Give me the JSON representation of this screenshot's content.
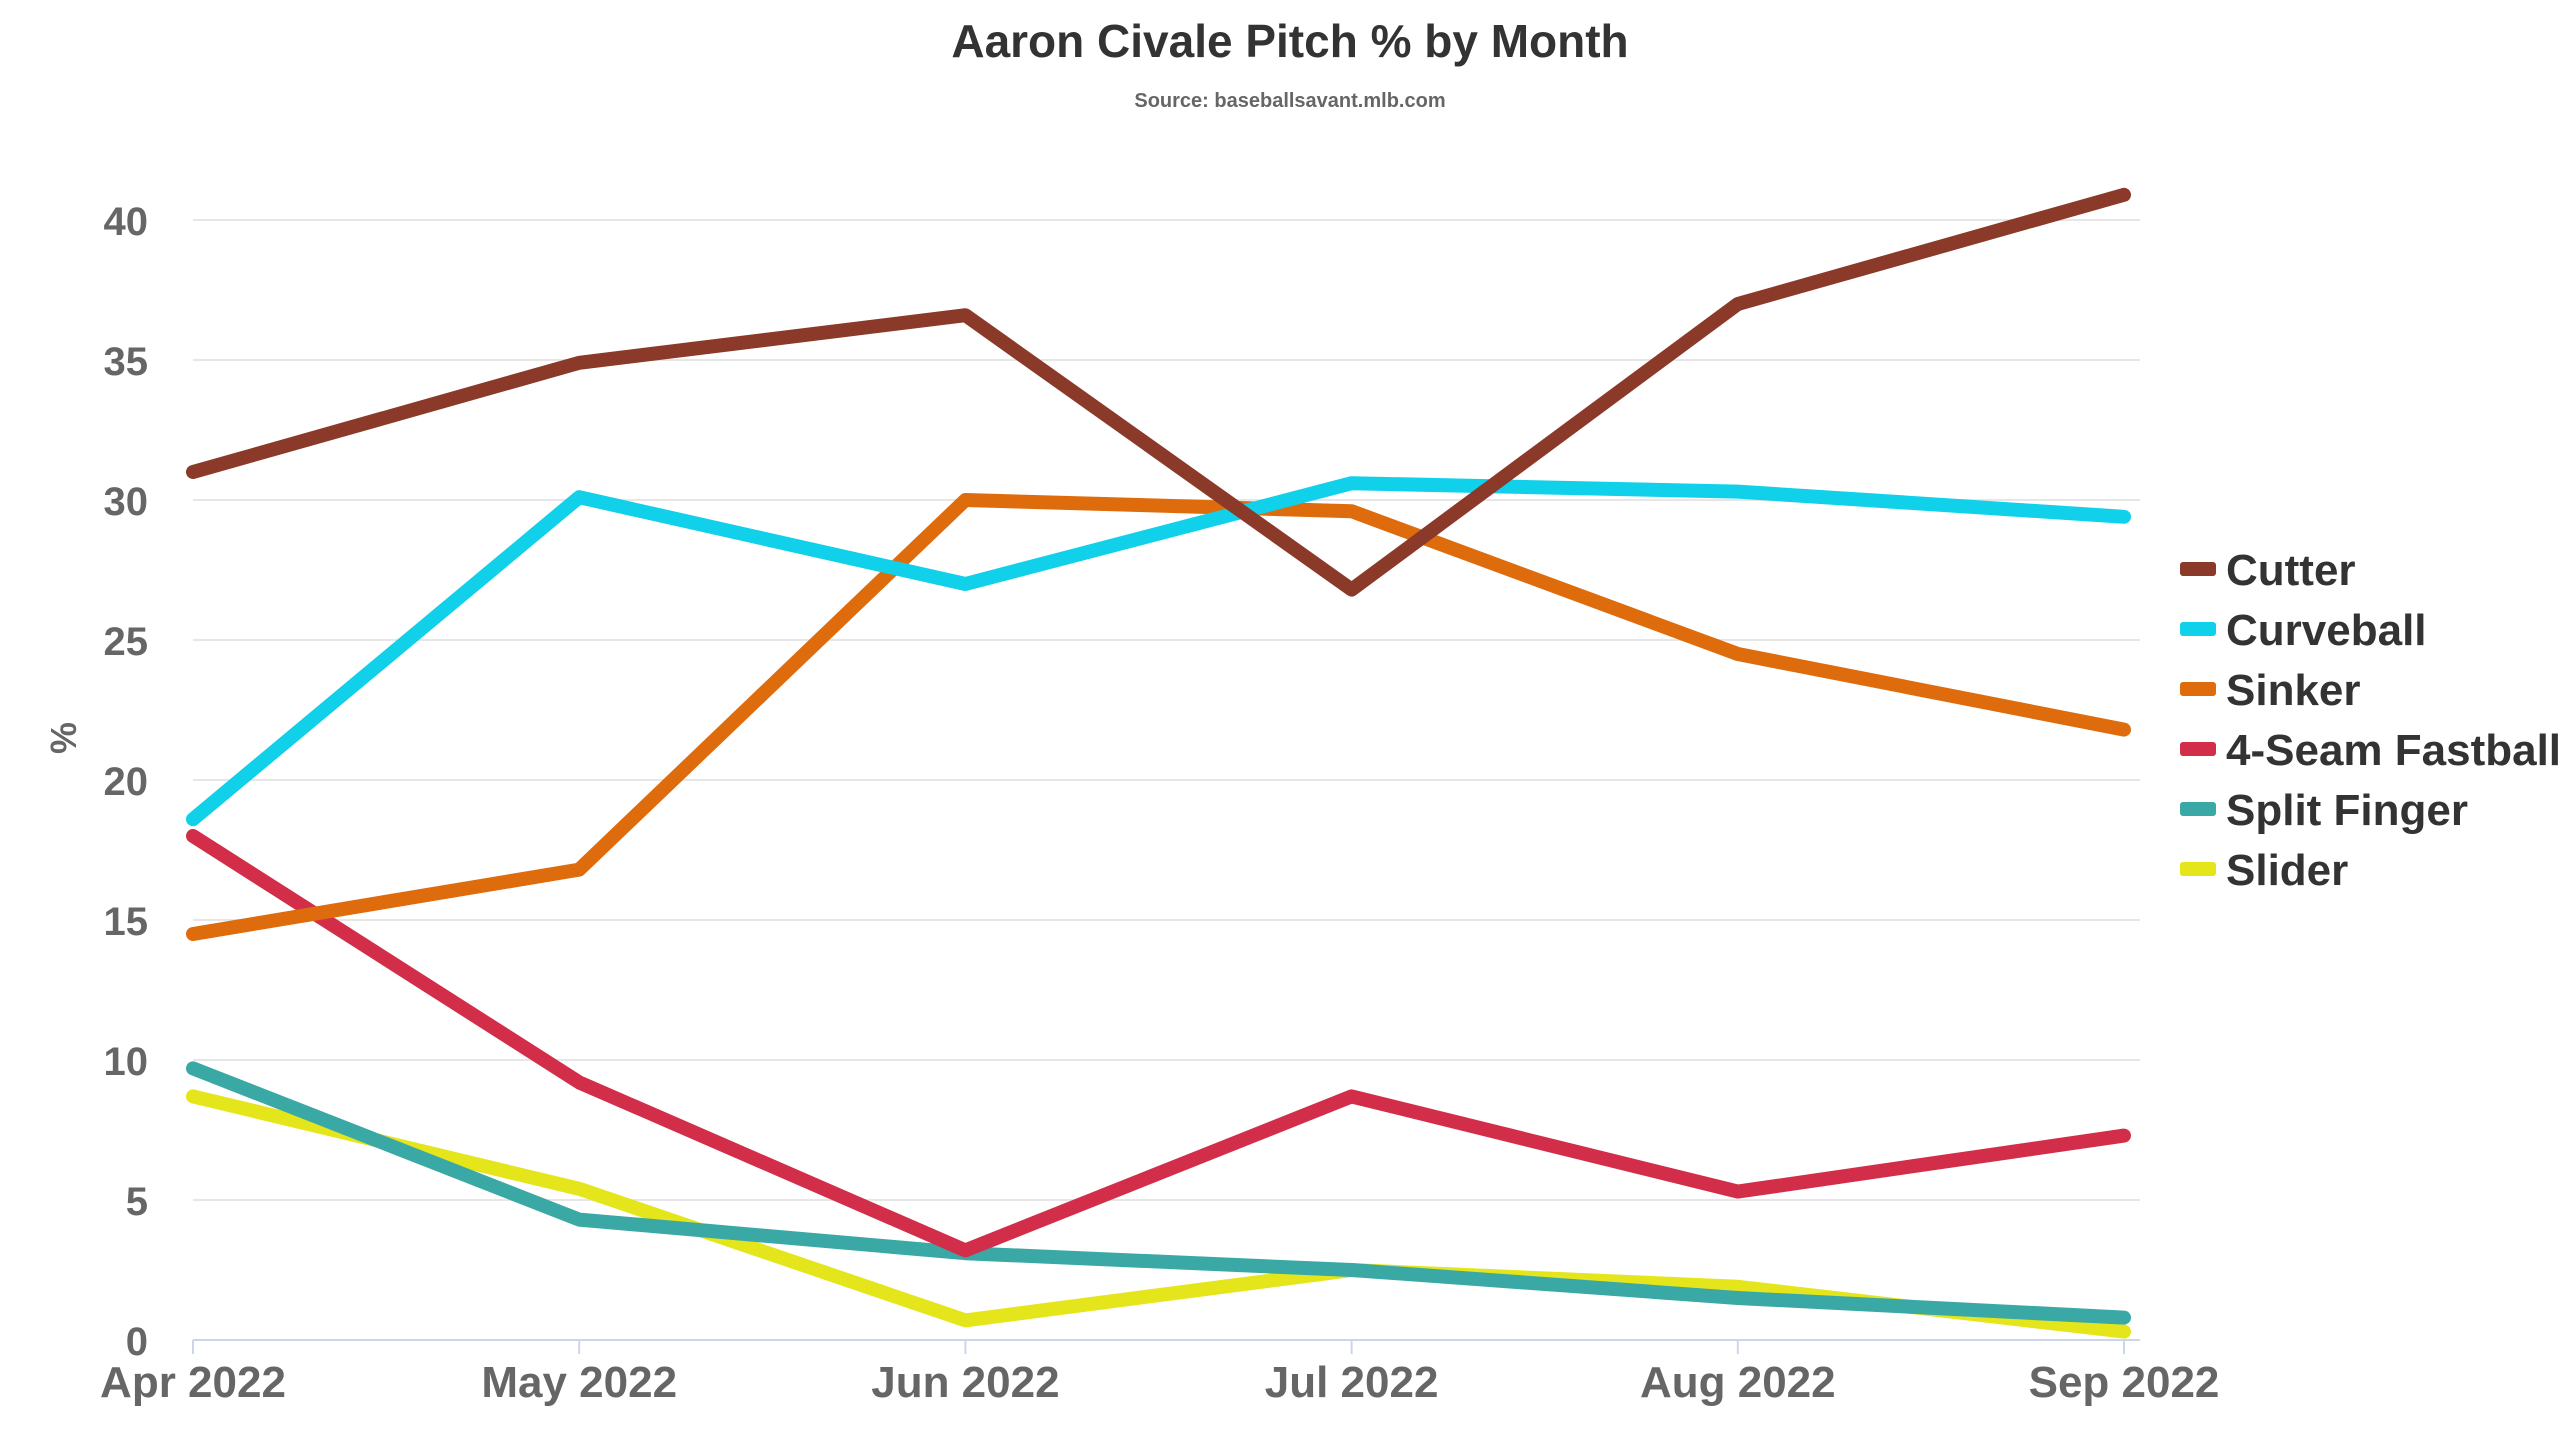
{
  "chart_data": {
    "type": "line",
    "title": "Aaron Civale Pitch % by Month",
    "subtitle": "Source: baseballsavant.mlb.com",
    "xlabel": "",
    "ylabel": "%",
    "categories": [
      "Apr 2022",
      "May 2022",
      "Jun 2022",
      "Jul 2022",
      "Aug 2022",
      "Sep 2022"
    ],
    "ylim": [
      0,
      40
    ],
    "yticks": [
      0,
      5,
      10,
      15,
      20,
      25,
      30,
      35,
      40
    ],
    "grid": true,
    "legend_position": "right",
    "series": [
      {
        "name": "Cutter",
        "color": "#8b3a2a",
        "values": [
          31.0,
          34.9,
          36.6,
          26.8,
          37.0,
          40.9
        ]
      },
      {
        "name": "Curveball",
        "color": "#10d0ea",
        "values": [
          18.6,
          30.1,
          27.0,
          30.6,
          30.3,
          29.4
        ]
      },
      {
        "name": "Sinker",
        "color": "#de6c0c",
        "values": [
          14.5,
          16.8,
          30.0,
          29.6,
          24.5,
          21.8
        ]
      },
      {
        "name": "4-Seam Fastball",
        "color": "#d22d49",
        "values": [
          18.0,
          9.2,
          3.2,
          8.7,
          5.3,
          7.3
        ]
      },
      {
        "name": "Split Finger",
        "color": "#3aa9a6",
        "values": [
          9.7,
          4.3,
          3.1,
          2.5,
          1.5,
          0.8
        ]
      },
      {
        "name": "Slider",
        "color": "#e5e51c",
        "values": [
          8.7,
          5.4,
          0.7,
          2.5,
          1.9,
          0.3
        ]
      }
    ]
  }
}
